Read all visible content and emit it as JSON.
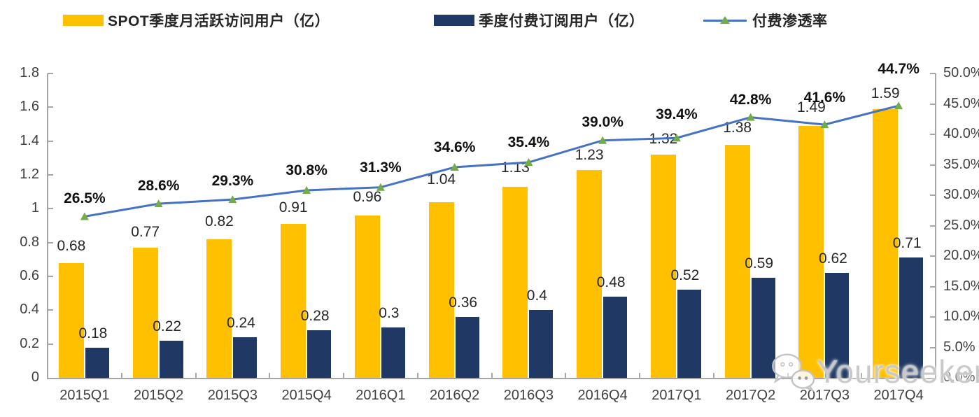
{
  "legend": {
    "items": [
      {
        "label": "SPOT季度月活跃访问用户（亿）",
        "swatch": "bar",
        "color": "#FFC000"
      },
      {
        "label": "季度付费订阅用户（亿）",
        "swatch": "bar",
        "color": "#1F3864"
      },
      {
        "label": "付费渗透率",
        "swatch": "line",
        "line_color": "#4472C4",
        "marker": "triangle",
        "marker_color": "#70AD47"
      }
    ]
  },
  "watermark": {
    "icon": "wechat-icon",
    "text": "Yourseeker"
  },
  "chart_data": {
    "type": "bar",
    "subtype": "grouped-bars-with-line-dual-axis",
    "title": "",
    "categories": [
      "2015Q1",
      "2015Q2",
      "2015Q3",
      "2015Q4",
      "2016Q1",
      "2016Q2",
      "2016Q3",
      "2016Q4",
      "2017Q1",
      "2017Q2",
      "2017Q3",
      "2017Q4"
    ],
    "series": [
      {
        "name": "SPOT季度月活跃访问用户（亿）",
        "type": "bar",
        "axis": "left",
        "color": "#FFC000",
        "values": [
          0.68,
          0.77,
          0.82,
          0.91,
          0.96,
          1.04,
          1.13,
          1.23,
          1.32,
          1.38,
          1.49,
          1.59
        ],
        "labels": [
          "0.68",
          "0.77",
          "0.82",
          "0.91",
          "0.96",
          "1.04",
          "1.13",
          "1.23",
          "1.32",
          "1.38",
          "1.49",
          "1.59"
        ]
      },
      {
        "name": "季度付费订阅用户（亿）",
        "type": "bar",
        "axis": "left",
        "color": "#1F3864",
        "values": [
          0.18,
          0.22,
          0.24,
          0.28,
          0.3,
          0.36,
          0.4,
          0.48,
          0.52,
          0.59,
          0.62,
          0.71
        ],
        "labels": [
          "0.18",
          "0.22",
          "0.24",
          "0.28",
          "0.3",
          "0.36",
          "0.4",
          "0.48",
          "0.52",
          "0.59",
          "0.62",
          "0.71"
        ]
      },
      {
        "name": "付费渗透率",
        "type": "line",
        "axis": "right",
        "color": "#4472C4",
        "marker": "triangle",
        "marker_color": "#70AD47",
        "values": [
          26.5,
          28.6,
          29.3,
          30.8,
          31.3,
          34.6,
          35.4,
          39.0,
          39.4,
          42.8,
          41.6,
          44.7
        ],
        "labels": [
          "26.5%",
          "28.6%",
          "29.3%",
          "30.8%",
          "31.3%",
          "34.6%",
          "35.4%",
          "39.0%",
          "39.4%",
          "42.8%",
          "41.6%",
          "44.7%"
        ]
      }
    ],
    "left_axis": {
      "min": 0,
      "max": 1.8,
      "step": 0.2,
      "tick_labels": [
        "0",
        "0.2",
        "0.4",
        "0.6",
        "0.8",
        "1",
        "1.2",
        "1.4",
        "1.6",
        "1.8"
      ]
    },
    "right_axis": {
      "min": 0,
      "max": 50,
      "step": 5,
      "tick_labels": [
        "0.0%",
        "5.0%",
        "10.0%",
        "15.0%",
        "20.0%",
        "25.0%",
        "30.0%",
        "35.0%",
        "40.0%",
        "45.0%",
        "50.0%"
      ]
    },
    "grid": false,
    "legend_position": "top"
  }
}
